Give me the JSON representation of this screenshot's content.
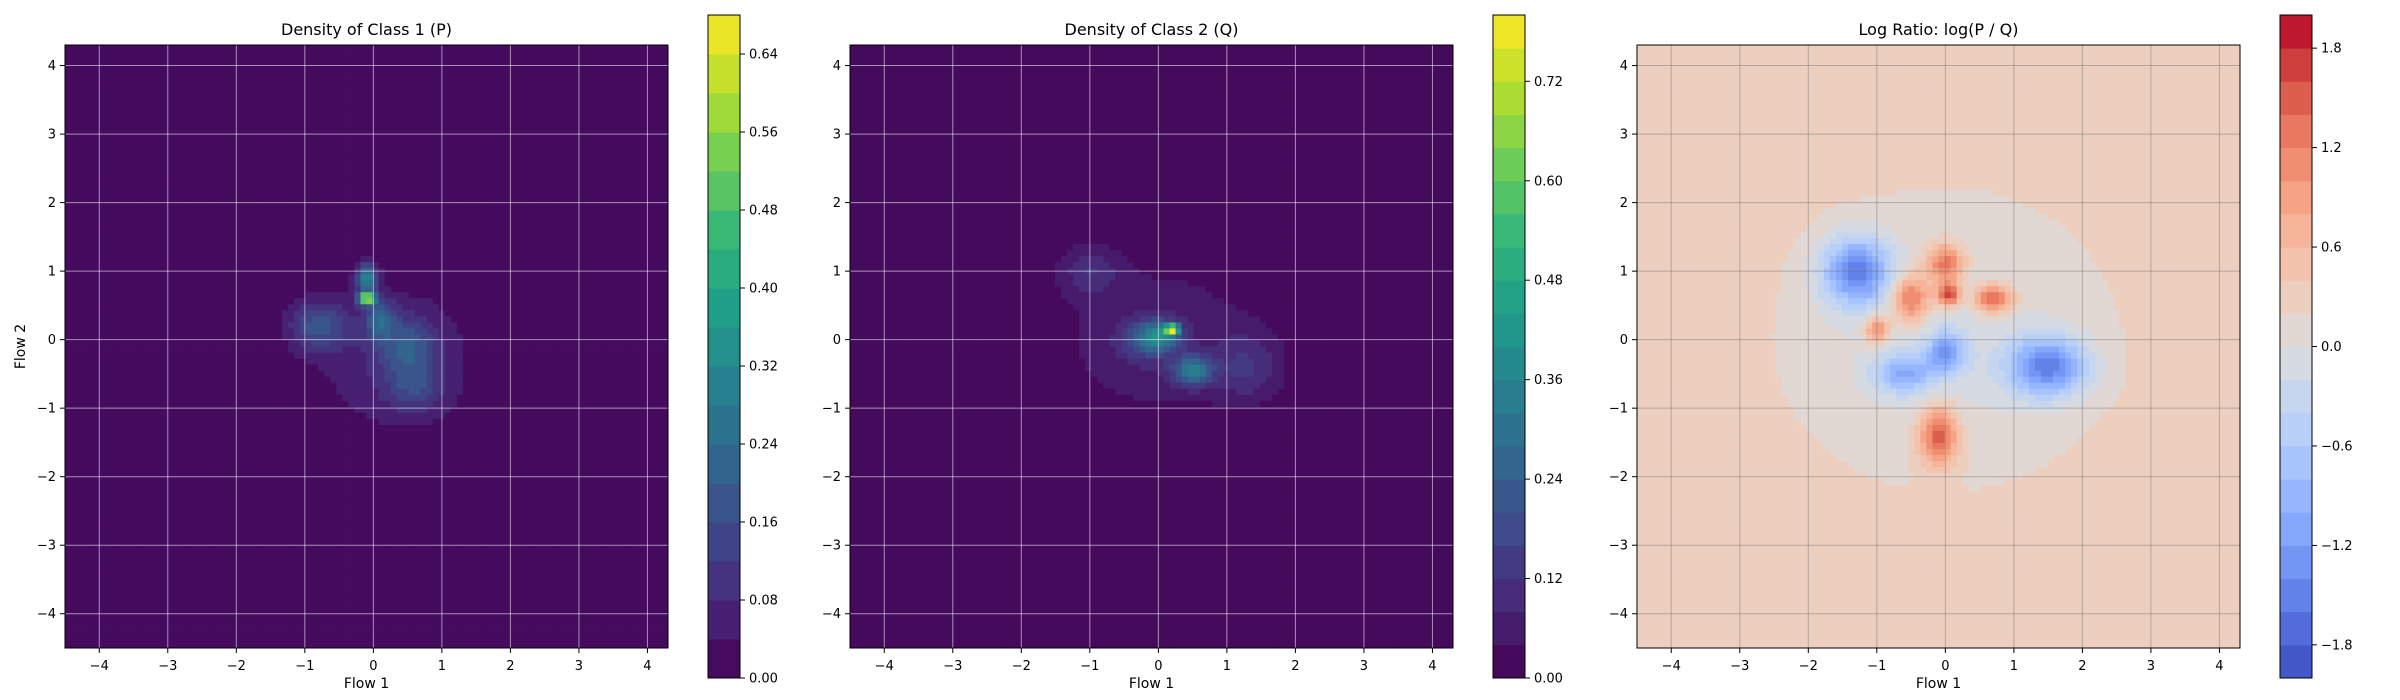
{
  "chart_data": [
    {
      "type": "heatmap",
      "title": "Density of Class 1 (P)",
      "xlabel": "Flow 1",
      "ylabel": "Flow 2",
      "xlim": [
        -4.5,
        4.3
      ],
      "ylim": [
        -4.5,
        4.3
      ],
      "xticks": [
        -4,
        -3,
        -2,
        -1,
        0,
        1,
        2,
        3,
        4
      ],
      "yticks": [
        -4,
        -3,
        -2,
        -1,
        0,
        1,
        2,
        3,
        4
      ],
      "grid": true,
      "colormap": "viridis",
      "colorbar": {
        "range": [
          0,
          0.68
        ],
        "ticks": [
          "0.00",
          "0.08",
          "0.16",
          "0.24",
          "0.32",
          "0.40",
          "0.48",
          "0.56",
          "0.64"
        ],
        "levels": 17
      },
      "background_value": 0.0,
      "blobs": [
        {
          "x": -0.1,
          "y": 0.6,
          "sx": 0.08,
          "sy": 0.06,
          "value": 0.62
        },
        {
          "x": -0.1,
          "y": 0.9,
          "sx": 0.1,
          "sy": 0.15,
          "value": 0.3
        },
        {
          "x": 0.1,
          "y": 0.3,
          "sx": 0.15,
          "sy": 0.2,
          "value": 0.18
        },
        {
          "x": -0.8,
          "y": 0.2,
          "sx": 0.3,
          "sy": 0.25,
          "value": 0.16
        },
        {
          "x": 0.5,
          "y": -0.1,
          "sx": 0.3,
          "sy": 0.3,
          "value": 0.14
        },
        {
          "x": 0.6,
          "y": -0.7,
          "sx": 0.3,
          "sy": 0.25,
          "value": 0.1
        },
        {
          "x": 0.3,
          "y": -0.3,
          "sx": 0.9,
          "sy": 0.8,
          "value": 0.07
        }
      ]
    },
    {
      "type": "heatmap",
      "title": "Density of Class 2 (Q)",
      "xlabel": "Flow 1",
      "ylabel": "",
      "xlim": [
        -4.5,
        4.3
      ],
      "ylim": [
        -4.5,
        4.3
      ],
      "xticks": [
        -4,
        -3,
        -2,
        -1,
        0,
        1,
        2,
        3,
        4
      ],
      "yticks": [
        -4,
        -3,
        -2,
        -1,
        0,
        1,
        2,
        3,
        4
      ],
      "grid": true,
      "colormap": "viridis",
      "colorbar": {
        "range": [
          0,
          0.8
        ],
        "ticks": [
          "0.00",
          "0.12",
          "0.24",
          "0.36",
          "0.48",
          "0.60",
          "0.72"
        ],
        "levels": 20
      },
      "background_value": 0.0,
      "blobs": [
        {
          "x": 0.2,
          "y": 0.15,
          "sx": 0.07,
          "sy": 0.05,
          "value": 0.7
        },
        {
          "x": 0.05,
          "y": 0.05,
          "sx": 0.2,
          "sy": 0.15,
          "value": 0.25
        },
        {
          "x": 0.5,
          "y": -0.45,
          "sx": 0.2,
          "sy": 0.15,
          "value": 0.3
        },
        {
          "x": -0.2,
          "y": 0.0,
          "sx": 0.25,
          "sy": 0.2,
          "value": 0.15
        },
        {
          "x": -1.0,
          "y": 1.0,
          "sx": 0.3,
          "sy": 0.25,
          "value": 0.1
        },
        {
          "x": 1.3,
          "y": -0.4,
          "sx": 0.35,
          "sy": 0.35,
          "value": 0.1
        },
        {
          "x": 0.0,
          "y": 0.0,
          "sx": 1.1,
          "sy": 0.85,
          "value": 0.07
        }
      ]
    },
    {
      "type": "heatmap",
      "title": "Log Ratio: log(P / Q)",
      "xlabel": "Flow 1",
      "ylabel": "",
      "xlim": [
        -4.5,
        4.3
      ],
      "ylim": [
        -4.5,
        4.3
      ],
      "xticks": [
        -4,
        -3,
        -2,
        -1,
        0,
        1,
        2,
        3,
        4
      ],
      "yticks": [
        -4,
        -3,
        -2,
        -1,
        0,
        1,
        2,
        3,
        4
      ],
      "grid": true,
      "colormap": "coolwarm",
      "colorbar": {
        "range": [
          -2.0,
          2.0
        ],
        "ticks": [
          "-1.8",
          "-1.2",
          "-0.6",
          "0.0",
          "0.6",
          "1.2",
          "1.8"
        ],
        "levels": 20
      },
      "background_value": 0.35,
      "blobs": [
        {
          "x": 0.0,
          "y": 0.0,
          "sx": 1.7,
          "sy": 1.5,
          "value": -0.45
        },
        {
          "x": -1.3,
          "y": 1.0,
          "sx": 0.35,
          "sy": 0.35,
          "value": -1.6
        },
        {
          "x": -0.5,
          "y": 0.6,
          "sx": 0.2,
          "sy": 0.25,
          "value": 1.3
        },
        {
          "x": 0.0,
          "y": 1.1,
          "sx": 0.2,
          "sy": 0.2,
          "value": 1.3
        },
        {
          "x": 0.05,
          "y": 0.65,
          "sx": 0.12,
          "sy": 0.12,
          "value": 1.6
        },
        {
          "x": 0.7,
          "y": 0.6,
          "sx": 0.2,
          "sy": 0.15,
          "value": 1.4
        },
        {
          "x": -1.0,
          "y": 0.15,
          "sx": 0.12,
          "sy": 0.15,
          "value": 1.1
        },
        {
          "x": -0.1,
          "y": -1.4,
          "sx": 0.2,
          "sy": 0.3,
          "value": 1.4
        },
        {
          "x": 0.0,
          "y": -0.2,
          "sx": 0.2,
          "sy": 0.2,
          "value": -1.2
        },
        {
          "x": -0.6,
          "y": -0.5,
          "sx": 0.3,
          "sy": 0.2,
          "value": -1.0
        },
        {
          "x": 1.5,
          "y": -0.4,
          "sx": 0.4,
          "sy": 0.3,
          "value": -1.6
        }
      ]
    }
  ]
}
